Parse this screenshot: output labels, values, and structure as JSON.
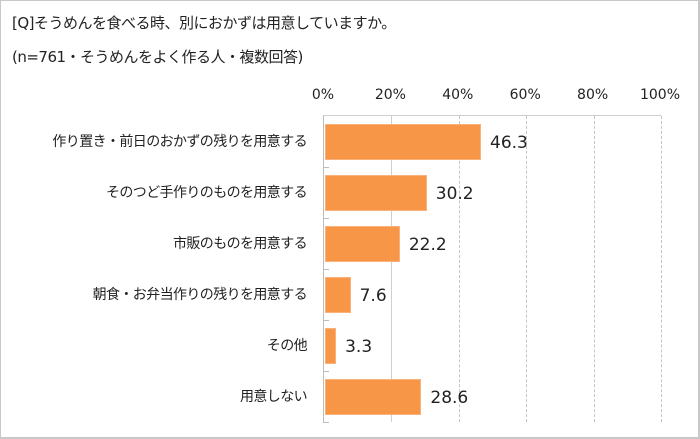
{
  "title": "[Q]そうめんを食べる時、別におかずは用意していますか。",
  "subtitle": "(n=761・そうめんをよく作る人・複数回答)",
  "colors": {
    "bar": "#f79646",
    "grid": "#c4c4c4",
    "border": "#c8c8c8"
  },
  "chart_data": {
    "type": "bar",
    "orientation": "horizontal",
    "title": "[Q]そうめんを食べる時、別におかずは用意していますか。",
    "subtitle": "(n=761・そうめんをよく作る人・複数回答)",
    "categories": [
      "作り置き・前日のおかずの残りを用意する",
      "そのつど手作りのものを用意する",
      "市販のものを用意する",
      "朝食・お弁当作りの残りを用意する",
      "その他",
      "用意しない"
    ],
    "values": [
      46.3,
      30.2,
      22.2,
      7.6,
      3.3,
      28.6
    ],
    "value_labels": [
      "46.3",
      "30.2",
      "22.2",
      "7.6",
      "3.3",
      "28.6"
    ],
    "xlabel": "",
    "ylabel": "",
    "xlim": [
      0,
      100
    ],
    "x_ticks": [
      "0%",
      "20%",
      "40%",
      "60%",
      "80%",
      "100%"
    ],
    "x_axis_position": "top",
    "grid": "vertical dashed",
    "legend": "none"
  }
}
